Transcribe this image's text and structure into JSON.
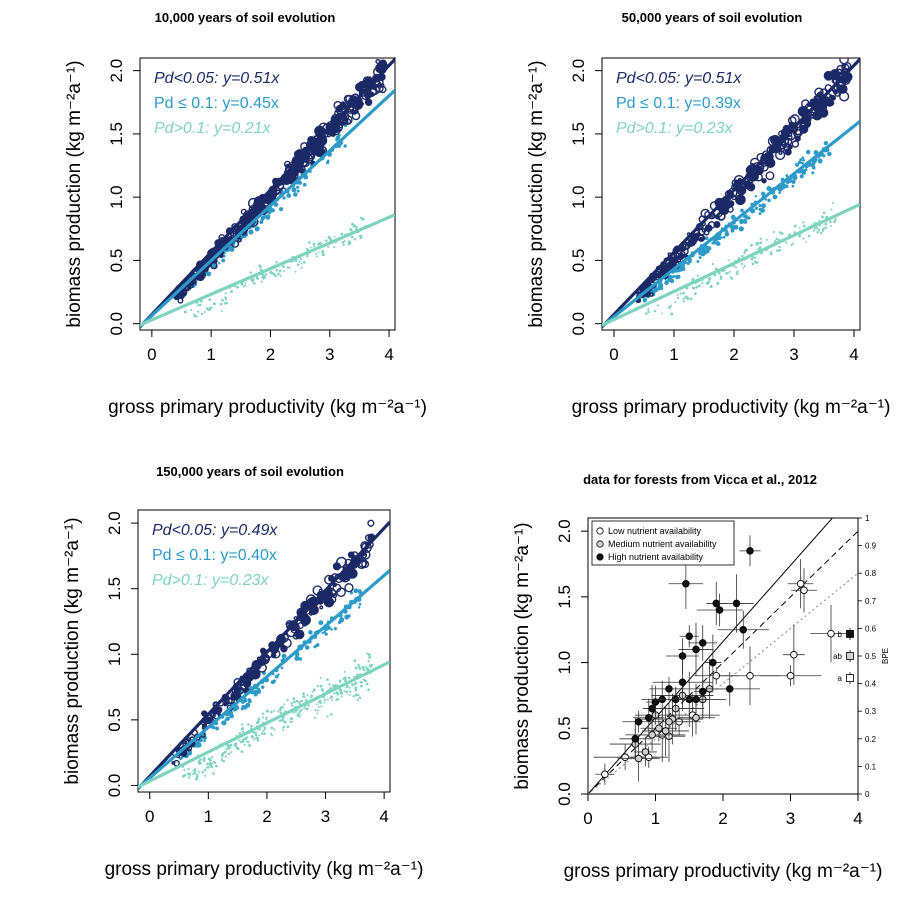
{
  "colors": {
    "dark": "#1b2a66",
    "mid": "#2e9ac8",
    "light": "#7fd3bf",
    "black": "#000000"
  },
  "chart_data": [
    {
      "type": "scatter",
      "title": "10,000 years of soil evolution",
      "xlabel": "gross primary productivity (kg m⁻²a⁻¹)",
      "ylabel": "biomass production (kg m⁻²a⁻¹)",
      "xlim": [
        -0.2,
        4.1
      ],
      "ylim": [
        -0.05,
        2.1
      ],
      "xticks": [
        "0",
        "1",
        "2",
        "3",
        "4"
      ],
      "yticks": [
        "0.0",
        "0.5",
        "1.0",
        "1.5",
        "2.0"
      ],
      "annotations": [
        {
          "text": "Pd<0.05: y=0.51x",
          "color": "#1b2a66",
          "italic": true
        },
        {
          "text": "Pd ≤ 0.1: y=0.45x",
          "color": "#2e9ac8",
          "italic": false
        },
        {
          "text": "Pd>0.1: y=0.21x",
          "color": "#7fd3bf",
          "italic": true
        }
      ],
      "series": [
        {
          "slope": 0.51,
          "x_range": [
            0.4,
            3.9
          ],
          "n": 420,
          "scatter": 0.07
        },
        {
          "slope": 0.45,
          "x_range": [
            0.5,
            3.3
          ],
          "n": 120,
          "scatter": 0.05
        },
        {
          "slope": 0.21,
          "x_range": [
            0.5,
            3.6
          ],
          "n": 160,
          "scatter": 0.07
        }
      ]
    },
    {
      "type": "scatter",
      "title": "50,000 years of soil evolution",
      "xlabel": "gross primary productivity (kg m⁻²a⁻¹)",
      "ylabel": "biomass production (kg m⁻²a⁻¹)",
      "xlim": [
        -0.2,
        4.1
      ],
      "ylim": [
        -0.05,
        2.1
      ],
      "xticks": [
        "0",
        "1",
        "2",
        "3",
        "4"
      ],
      "yticks": [
        "0.0",
        "0.5",
        "1.0",
        "1.5",
        "2.0"
      ],
      "annotations": [
        {
          "text": "Pd<0.05: y=0.51x",
          "color": "#1b2a66",
          "italic": true
        },
        {
          "text": "Pd ≤ 0.1: y=0.39x",
          "color": "#2e9ac8",
          "italic": false
        },
        {
          "text": "Pd>0.1: y=0.23x",
          "color": "#7fd3bf",
          "italic": true
        }
      ],
      "series": [
        {
          "slope": 0.51,
          "x_range": [
            0.4,
            3.9
          ],
          "n": 320,
          "scatter": 0.08
        },
        {
          "slope": 0.39,
          "x_range": [
            0.5,
            3.6
          ],
          "n": 200,
          "scatter": 0.06
        },
        {
          "slope": 0.23,
          "x_range": [
            0.5,
            3.7
          ],
          "n": 170,
          "scatter": 0.07
        }
      ]
    },
    {
      "type": "scatter",
      "title": "150,000 years of soil evolution",
      "xlabel": "gross primary productivity (kg m⁻²a⁻¹)",
      "ylabel": "biomass production (kg m⁻²a⁻¹)",
      "xlim": [
        -0.2,
        4.1
      ],
      "ylim": [
        -0.05,
        2.1
      ],
      "xticks": [
        "0",
        "1",
        "2",
        "3",
        "4"
      ],
      "yticks": [
        "0.0",
        "0.5",
        "1.0",
        "1.5",
        "2.0"
      ],
      "annotations": [
        {
          "text": "Pd<0.05: y=0.49x",
          "color": "#1b2a66",
          "italic": true
        },
        {
          "text": "Pd ≤ 0.1: y=0.40x",
          "color": "#2e9ac8",
          "italic": false
        },
        {
          "text": "Pd>0.1: y=0.23x",
          "color": "#7fd3bf",
          "italic": true
        }
      ],
      "series": [
        {
          "slope": 0.49,
          "x_range": [
            0.4,
            3.8
          ],
          "n": 200,
          "scatter": 0.08
        },
        {
          "slope": 0.4,
          "x_range": [
            0.5,
            3.6
          ],
          "n": 140,
          "scatter": 0.06
        },
        {
          "slope": 0.23,
          "x_range": [
            0.5,
            3.8
          ],
          "n": 330,
          "scatter": 0.09
        }
      ]
    },
    {
      "type": "scatter",
      "title": "data for forests  from Vicca et al., 2012",
      "xlabel": "gross primary productivity (kg m⁻²a⁻¹)",
      "ylabel": "biomass production (kg m⁻²a⁻¹)",
      "y2label": "BPE",
      "xlim": [
        0,
        4
      ],
      "ylim": [
        0,
        2.1
      ],
      "xticks": [
        "0",
        "1",
        "2",
        "3",
        "4"
      ],
      "yticks": [
        "0.0",
        "0.5",
        "1.0",
        "1.5",
        "2.0"
      ],
      "y2ticks": [
        "0",
        "0.1",
        "0.2",
        "0.3",
        "0.4",
        "0.5",
        "0.6",
        "0.7",
        "0.8",
        "0.9",
        "1"
      ],
      "legend": [
        "Low nutrient availability",
        "Medium nutrient availability",
        "High nutrient availability"
      ],
      "legend_position": "top-left",
      "bpe_letters": [
        "b",
        "ab",
        "a"
      ],
      "bpe_values": [
        0.58,
        0.5,
        0.42
      ],
      "lines": [
        {
          "slope": 0.58,
          "style": "solid"
        },
        {
          "slope": 0.5,
          "style": "dashed"
        },
        {
          "slope": 0.42,
          "style": "dotted"
        }
      ],
      "points": {
        "high": [
          [
            0.7,
            0.42
          ],
          [
            0.75,
            0.55
          ],
          [
            0.9,
            0.58
          ],
          [
            0.95,
            0.65
          ],
          [
            1.0,
            0.7
          ],
          [
            1.1,
            0.72
          ],
          [
            1.2,
            0.8
          ],
          [
            1.3,
            0.72
          ],
          [
            1.4,
            0.85
          ],
          [
            1.5,
            0.72
          ],
          [
            1.6,
            0.72
          ],
          [
            1.4,
            1.05
          ],
          [
            1.5,
            1.2
          ],
          [
            1.6,
            1.1
          ],
          [
            1.7,
            1.15
          ],
          [
            1.85,
            1.0
          ],
          [
            1.9,
            1.45
          ],
          [
            1.95,
            1.4
          ],
          [
            2.1,
            0.8
          ],
          [
            2.2,
            1.45
          ],
          [
            2.3,
            1.25
          ],
          [
            2.4,
            1.85
          ],
          [
            1.45,
            1.6
          ],
          [
            1.7,
            0.78
          ]
        ],
        "medium": [
          [
            0.7,
            0.38
          ],
          [
            0.75,
            0.27
          ],
          [
            0.85,
            0.32
          ],
          [
            0.95,
            0.45
          ],
          [
            1.05,
            0.5
          ],
          [
            1.15,
            0.48
          ],
          [
            1.25,
            0.57
          ],
          [
            1.3,
            0.65
          ],
          [
            1.4,
            0.75
          ],
          [
            1.6,
            0.58
          ],
          [
            1.7,
            0.72
          ],
          [
            1.8,
            0.8
          ],
          [
            1.2,
            0.55
          ],
          [
            1.0,
            0.6
          ]
        ],
        "low": [
          [
            0.25,
            0.15
          ],
          [
            0.55,
            0.28
          ],
          [
            0.9,
            0.28
          ],
          [
            1.1,
            0.45
          ],
          [
            1.35,
            0.55
          ],
          [
            1.55,
            0.6
          ],
          [
            1.9,
            0.9
          ],
          [
            2.4,
            0.9
          ],
          [
            3.0,
            0.9
          ],
          [
            3.05,
            1.06
          ],
          [
            3.15,
            1.6
          ],
          [
            3.2,
            1.55
          ],
          [
            3.6,
            1.22
          ],
          [
            1.2,
            0.44
          ]
        ]
      }
    }
  ]
}
